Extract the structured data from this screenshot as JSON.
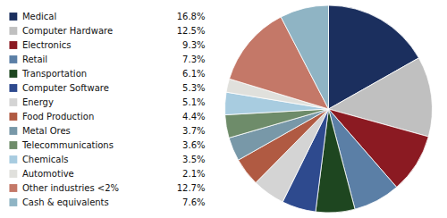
{
  "chart_data": {
    "type": "pie",
    "categories": [
      "Medical",
      "Computer Hardware",
      "Electronics",
      "Retail",
      "Transportation",
      "Computer Software",
      "Energy",
      "Food Production",
      "Metal Ores",
      "Telecommunications",
      "Chemicals",
      "Automotive",
      "Other industries <2%",
      "Cash & equivalents"
    ],
    "values": [
      16.8,
      12.5,
      9.3,
      7.3,
      6.1,
      5.3,
      5.1,
      4.4,
      3.7,
      3.6,
      3.5,
      2.1,
      12.7,
      7.6
    ],
    "value_labels": [
      "16.8%",
      "12.5%",
      "9.3%",
      "7.3%",
      "6.1%",
      "5.3%",
      "5.1%",
      "4.4%",
      "3.7%",
      "3.6%",
      "3.5%",
      "2.1%",
      "12.7%",
      "7.6%"
    ],
    "colors": [
      "#1b2f5e",
      "#c0c0c0",
      "#8b1a22",
      "#5b7fa6",
      "#1e4620",
      "#2e4a8e",
      "#d4d4d4",
      "#b05a42",
      "#7898a8",
      "#6e8c6a",
      "#a8cce0",
      "#e0e0dc",
      "#c47868",
      "#8fb4c4"
    ],
    "legend": "left"
  }
}
